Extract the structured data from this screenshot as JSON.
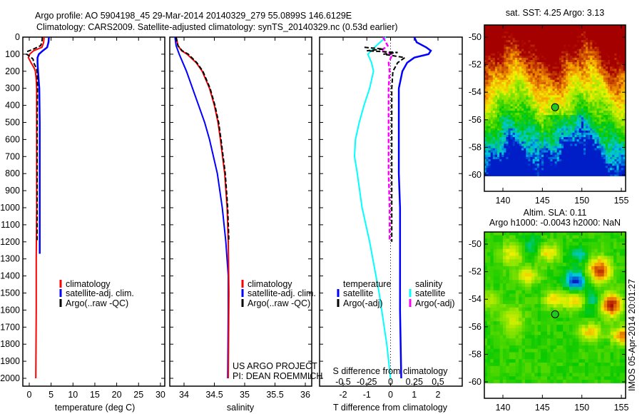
{
  "header": {
    "line1": "Argo profile: AO 5904198_45 29-Mar-2014 20140329_279 55.0899S 146.6129E",
    "line2": "Climatology: CARS2009. Satellite-adjusted climatology: synTS_20140329.nc (0.53d earlier)"
  },
  "colors": {
    "climatology": "#ff0000",
    "satellite": "#0000ff",
    "argo": "#000000",
    "sal_satellite": "#00ffff",
    "sal_argo": "#ff00ff"
  },
  "chart_data": [
    {
      "type": "line",
      "title": "temperature profile",
      "xlabel": "temperature (deg C)",
      "ylabel": "depth",
      "xlim": [
        -1.5,
        31
      ],
      "ylim": [
        2040,
        0
      ],
      "xticks": [
        "0",
        "5",
        "10",
        "15",
        "20",
        "25",
        "30"
      ],
      "xtick_values": [
        0,
        5,
        10,
        15,
        20,
        25,
        30
      ],
      "yticks": [
        "0",
        "100",
        "200",
        "300",
        "400",
        "500",
        "600",
        "700",
        "800",
        "900",
        "1000",
        "1100",
        "1200",
        "1300",
        "1400",
        "1500",
        "1600",
        "1700",
        "1800",
        "1900",
        "2000"
      ],
      "legend": [
        "climatology",
        "satellite-adj. clim.",
        "Argo(..raw -QC)"
      ],
      "series": [
        {
          "name": "climatology",
          "depth": [
            0,
            30,
            60,
            80,
            100,
            120,
            150,
            180,
            200,
            250,
            300,
            500,
            800,
            1000,
            1300,
            1600,
            2000
          ],
          "values": [
            3.4,
            3.3,
            2.9,
            1.0,
            0.1,
            -0.2,
            0.4,
            1.1,
            1.4,
            1.6,
            1.7,
            1.7,
            1.7,
            1.7,
            1.6,
            1.6,
            1.5
          ]
        },
        {
          "name": "satellite-adj. clim.",
          "depth": [
            0,
            30,
            60,
            80,
            100,
            120,
            150,
            200,
            300,
            500,
            800,
            1000,
            1200,
            1270
          ],
          "values": [
            4.5,
            4.4,
            4.1,
            3.1,
            2.2,
            1.9,
            1.9,
            2.0,
            2.3,
            2.4,
            2.4,
            2.4,
            2.4,
            2.4
          ]
        },
        {
          "name": "Argo(..raw -QC)",
          "depth": [
            0,
            30,
            50,
            70,
            85,
            100,
            115,
            130,
            150,
            180,
            200,
            300,
            500,
            800,
            1000,
            1200
          ],
          "values": [
            3.0,
            2.9,
            2.6,
            1.0,
            -0.5,
            -0.6,
            0.3,
            0.9,
            1.0,
            1.6,
            1.8,
            1.9,
            1.8,
            1.8,
            1.8,
            1.8
          ]
        }
      ]
    },
    {
      "type": "line",
      "title": "salinity profile",
      "xlabel": "salinity",
      "ylabel": "depth",
      "xlim": [
        33.76,
        36.1
      ],
      "ylim": [
        2040,
        0
      ],
      "xticks": [
        "34",
        "34.5",
        "35",
        "35.5",
        "36"
      ],
      "xtick_values": [
        34,
        34.5,
        35,
        35.5,
        36
      ],
      "legend": [
        "climatology",
        "satellite-adj. clim.",
        "Argo(..raw -QC)"
      ],
      "annotation": [
        "US ARGO PROJECT",
        "PI: DEAN ROEMMICH"
      ],
      "series": [
        {
          "name": "climatology",
          "depth": [
            0,
            50,
            80,
            100,
            150,
            200,
            300,
            400,
            500,
            600,
            800,
            1000,
            1200,
            1500,
            2000
          ],
          "values": [
            33.87,
            33.9,
            33.96,
            34.05,
            34.2,
            34.3,
            34.42,
            34.5,
            34.56,
            34.6,
            34.67,
            34.71,
            34.73,
            34.74,
            34.73
          ]
        },
        {
          "name": "satellite-adj. clim.",
          "depth": [
            0,
            50,
            100,
            150,
            200,
            300,
            400,
            500,
            600,
            800,
            1000,
            1200,
            1400,
            1600,
            2000
          ],
          "values": [
            33.85,
            33.87,
            33.92,
            33.98,
            34.04,
            34.14,
            34.24,
            34.34,
            34.42,
            34.55,
            34.63,
            34.69,
            34.73,
            34.73,
            34.72
          ]
        },
        {
          "name": "Argo(..raw -QC)",
          "depth": [
            0,
            50,
            80,
            100,
            150,
            200,
            300,
            400,
            500,
            600,
            800,
            1000,
            1200
          ],
          "values": [
            33.87,
            33.9,
            33.97,
            34.07,
            34.21,
            34.31,
            34.43,
            34.51,
            34.57,
            34.61,
            34.68,
            34.72,
            34.74
          ]
        }
      ]
    },
    {
      "type": "line",
      "title": "difference from climatology",
      "xlabel": "T difference from climatology",
      "x2label": "S difference from climatology",
      "xlim": [
        -3,
        3
      ],
      "x2lim": [
        -0.75,
        0.75
      ],
      "ylim": [
        2040,
        0
      ],
      "xticks": [
        "-2",
        "-1",
        "0",
        "1",
        "2"
      ],
      "xtick_values": [
        -2,
        -1,
        0,
        1,
        2
      ],
      "x2ticks": [
        "-0.5",
        "-0.25",
        "0",
        "0.25",
        "0.5"
      ],
      "x2tick_values": [
        -0.5,
        -0.25,
        0,
        0.25,
        0.5
      ],
      "legend_headers": [
        "temperature",
        "salinity"
      ],
      "legend": [
        "satellite",
        "Argo(-adj)",
        "satellite",
        "Argo(-adj)"
      ],
      "series": [
        {
          "name": "T satellite",
          "axis": "T",
          "depth": [
            0,
            30,
            60,
            80,
            100,
            120,
            150,
            200,
            300,
            500,
            800,
            1000,
            1300,
            1600,
            2000
          ],
          "values": [
            1.0,
            1.1,
            1.5,
            1.7,
            1.6,
            1.0,
            0.7,
            0.5,
            0.35,
            0.35,
            0.35,
            0.4,
            0.4,
            0.4,
            0.45
          ]
        },
        {
          "name": "T Argo(-adj)",
          "axis": "T",
          "depth": [
            60,
            70,
            80,
            90,
            100,
            120,
            150,
            200,
            300,
            500,
            800,
            1000,
            1200
          ],
          "values": [
            -1.1,
            -0.3,
            -1.0,
            0.3,
            -0.3,
            0.6,
            0.3,
            0.1,
            0.05,
            0.05,
            0.05,
            0.05,
            0.05
          ]
        },
        {
          "name": "S satellite",
          "axis": "S",
          "depth": [
            0,
            50,
            100,
            150,
            200,
            300,
            400,
            500,
            600,
            700,
            800,
            1000,
            1200,
            1500,
            1800,
            2000
          ],
          "values": [
            -0.05,
            -0.15,
            -0.24,
            -0.2,
            -0.18,
            -0.22,
            -0.28,
            -0.33,
            -0.37,
            -0.38,
            -0.35,
            -0.3,
            -0.22,
            -0.12,
            -0.04,
            0.0
          ]
        },
        {
          "name": "S Argo(-adj)",
          "axis": "S",
          "depth": [
            0,
            50,
            80,
            100,
            150,
            200,
            300,
            500,
            800,
            1000,
            1200
          ],
          "values": [
            -0.08,
            -0.03,
            -0.1,
            0.02,
            -0.02,
            -0.01,
            -0.02,
            -0.02,
            -0.02,
            -0.01,
            -0.01
          ]
        }
      ]
    },
    {
      "type": "heatmap",
      "title": "sat. SST: 4.25 Argo: 3.13",
      "xlim": [
        137.6,
        155.5
      ],
      "ylim": [
        -61.2,
        -49.1
      ],
      "xticks": [
        "140",
        "145",
        "150",
        "155"
      ],
      "xtick_values": [
        140,
        145,
        150,
        155
      ],
      "yticks": [
        "-50",
        "-52",
        "-54",
        "-56",
        "-58",
        "-60"
      ],
      "ytick_values": [
        -50,
        -52,
        -54,
        -56,
        -58,
        -60
      ],
      "marker": {
        "lon": 146.61,
        "lat": -55.09
      }
    },
    {
      "type": "heatmap",
      "title": [
        "Altim. SLA: 0.11",
        "Argo h1000: -0.0043 h2000: NaN"
      ],
      "xlim": [
        137.6,
        155.5
      ],
      "ylim": [
        -61.2,
        -49.1
      ],
      "xticks": [
        "140",
        "145",
        "150",
        "155"
      ],
      "xtick_values": [
        140,
        145,
        150,
        155
      ],
      "yticks": [
        "-50",
        "-52",
        "-54",
        "-56",
        "-58",
        "-60"
      ],
      "ytick_values": [
        -50,
        -52,
        -54,
        -56,
        -58,
        -60
      ],
      "marker": {
        "lon": 146.61,
        "lat": -55.09
      }
    }
  ],
  "footer": {
    "stamp": "IMOS 05-Apr-2014 20:01:27"
  }
}
